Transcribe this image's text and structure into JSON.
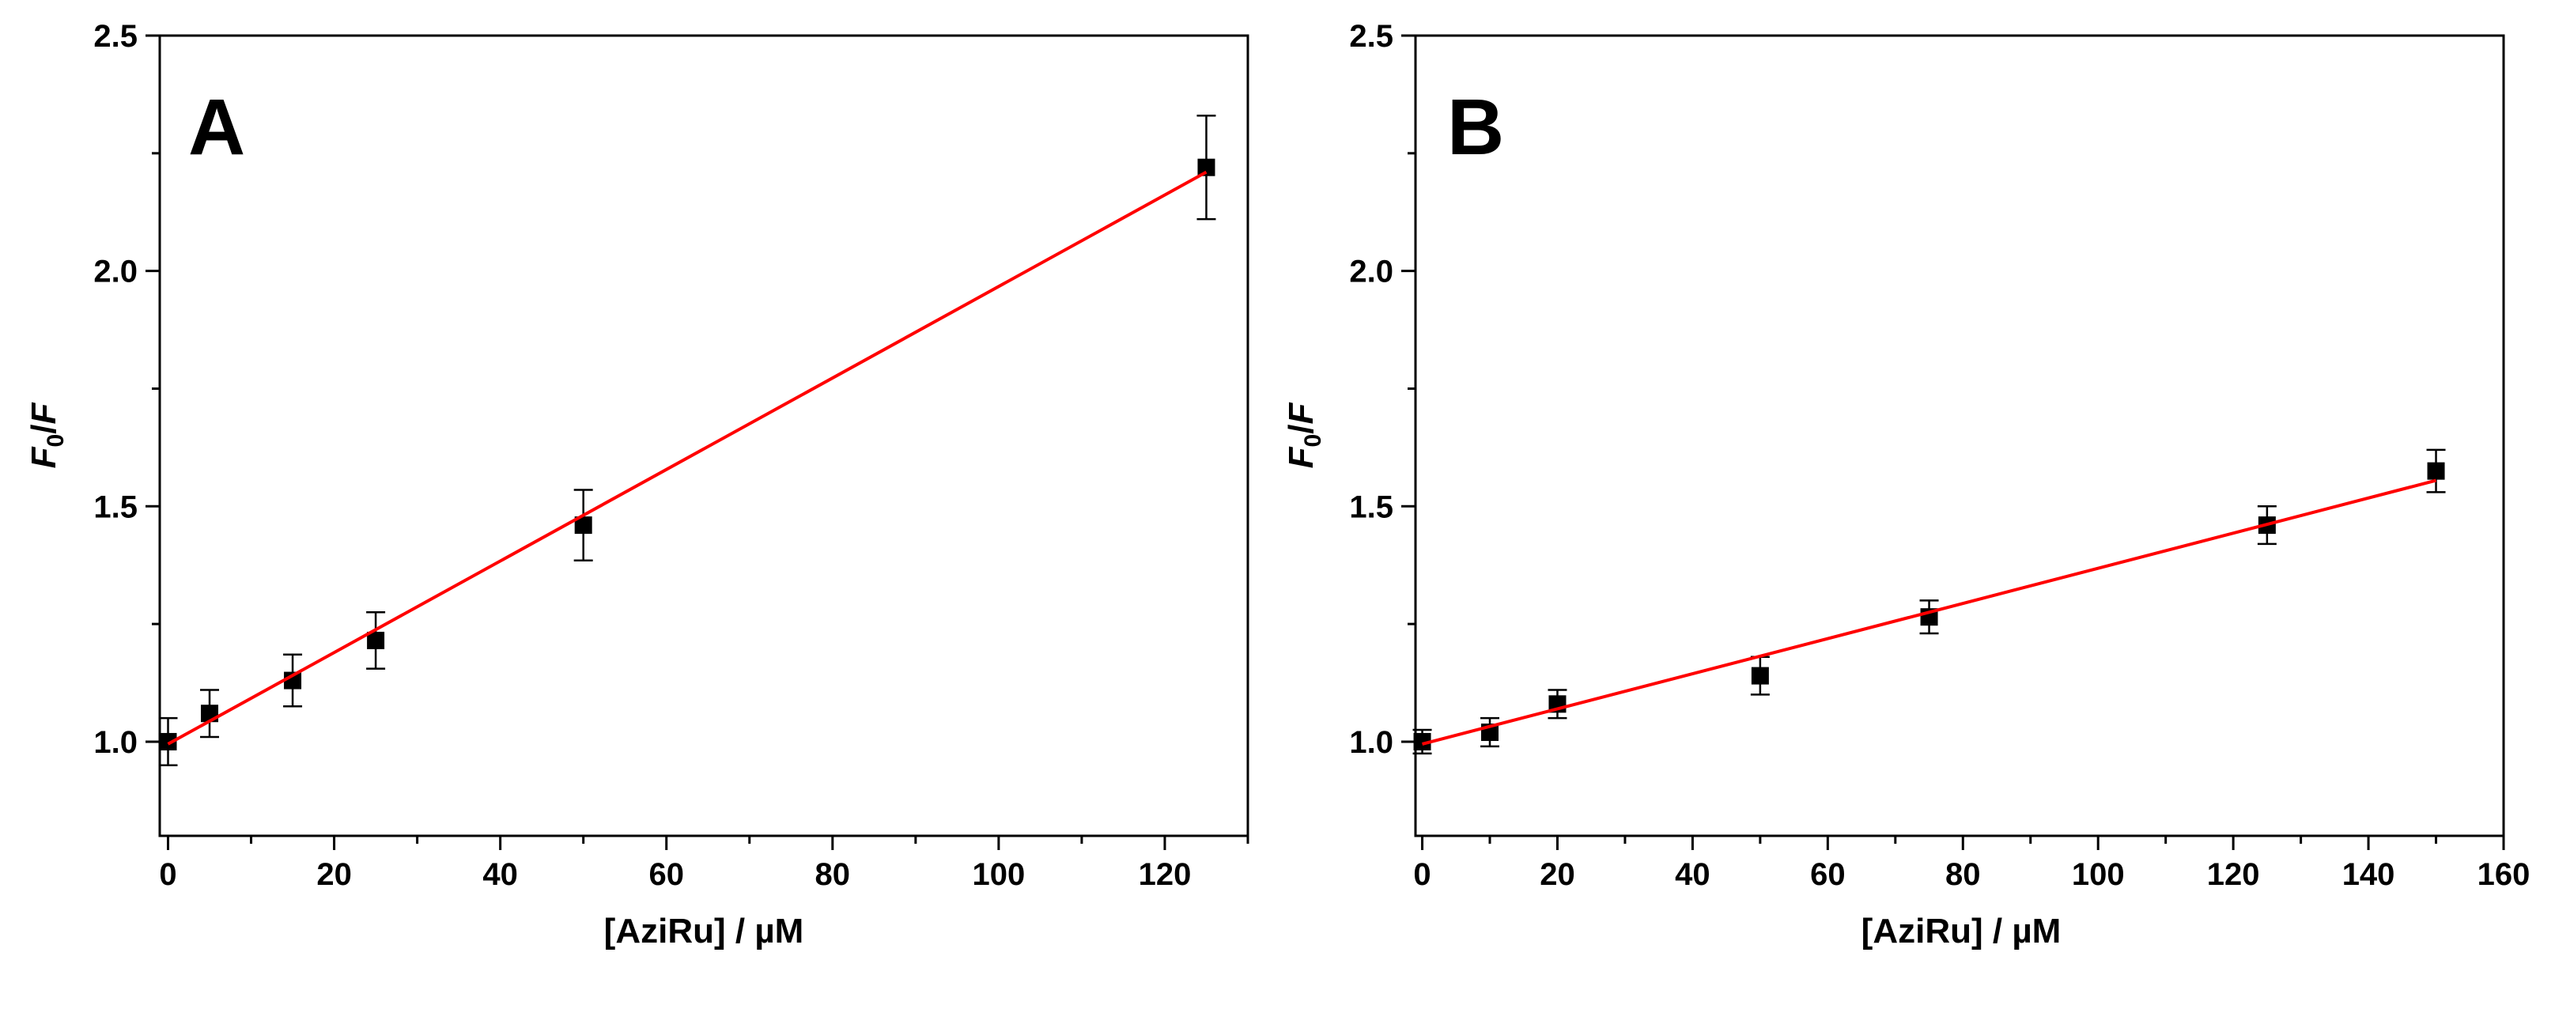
{
  "chart_data": [
    {
      "type": "scatter",
      "panel_label": "A",
      "xlabel_main": "[AziRu] / ",
      "xlabel_unit": "µM",
      "ylabel_F": "F",
      "ylabel_sub": "0",
      "ylabel_slash": "/",
      "ylabel_F2": "F",
      "xlim": [
        -1,
        130
      ],
      "ylim": [
        0.8,
        2.5
      ],
      "xticks": [
        0,
        20,
        40,
        60,
        80,
        100,
        120
      ],
      "yticks": [
        1.0,
        1.5,
        2.0,
        2.5
      ],
      "x": [
        0,
        5,
        15,
        25,
        50,
        125
      ],
      "y": [
        1.0,
        1.06,
        1.13,
        1.215,
        1.46,
        2.22
      ],
      "yerr": [
        0.05,
        0.05,
        0.055,
        0.06,
        0.075,
        0.11
      ],
      "fit": {
        "color": "#ff0000",
        "x": [
          0,
          125
        ],
        "y": [
          0.995,
          2.21
        ]
      }
    },
    {
      "type": "scatter",
      "panel_label": "B",
      "xlabel_main": "[AziRu] / ",
      "xlabel_unit": "µM",
      "ylabel_F": "F",
      "ylabel_sub": "0",
      "ylabel_slash": "/",
      "ylabel_F2": "F",
      "xlim": [
        -1,
        160
      ],
      "ylim": [
        0.8,
        2.5
      ],
      "xticks": [
        0,
        20,
        40,
        60,
        80,
        100,
        120,
        140,
        160
      ],
      "yticks": [
        1.0,
        1.5,
        2.0,
        2.5
      ],
      "x": [
        0,
        10,
        20,
        50,
        75,
        125,
        150
      ],
      "y": [
        1.0,
        1.02,
        1.08,
        1.14,
        1.265,
        1.46,
        1.575
      ],
      "yerr": [
        0.025,
        0.03,
        0.03,
        0.04,
        0.035,
        0.04,
        0.045
      ],
      "fit": {
        "color": "#ff0000",
        "x": [
          0,
          150
        ],
        "y": [
          0.995,
          1.555
        ]
      }
    }
  ]
}
